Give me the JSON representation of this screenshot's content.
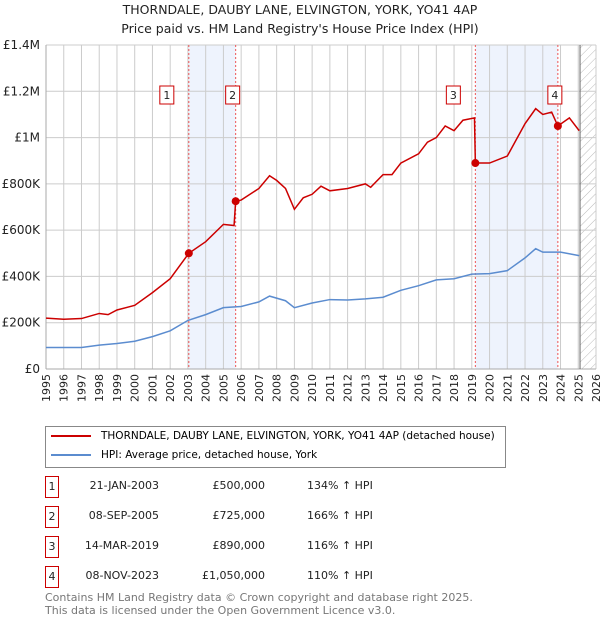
{
  "chart_data": {
    "type": "line",
    "title": "THORNDALE, DAUBY LANE, ELVINGTON, YORK, YO41 4AP",
    "subtitle": "Price paid vs. HM Land Registry's House Price Index (HPI)",
    "xlim": [
      1995,
      2026
    ],
    "ylim": [
      0,
      1400000
    ],
    "y_ticks": [
      {
        "v": 0,
        "label": "£0"
      },
      {
        "v": 200000,
        "label": "£200K"
      },
      {
        "v": 400000,
        "label": "£400K"
      },
      {
        "v": 600000,
        "label": "£600K"
      },
      {
        "v": 800000,
        "label": "£800K"
      },
      {
        "v": 1000000,
        "label": "£1M"
      },
      {
        "v": 1200000,
        "label": "£1.2M"
      },
      {
        "v": 1400000,
        "label": "£1.4M"
      }
    ],
    "x_ticks": [
      "1995",
      "1996",
      "1997",
      "1998",
      "1999",
      "2000",
      "2001",
      "2002",
      "2003",
      "2004",
      "2005",
      "2006",
      "2007",
      "2008",
      "2009",
      "2010",
      "2011",
      "2012",
      "2013",
      "2014",
      "2015",
      "2016",
      "2017",
      "2018",
      "2019",
      "2020",
      "2021",
      "2022",
      "2023",
      "2024",
      "2025",
      "2026"
    ],
    "grid": true,
    "series": [
      {
        "name": "THORNDALE, DAUBY LANE, ELVINGTON, YORK, YO41 4AP (detached house)",
        "color": "#cc0000",
        "x": [
          1995,
          1996,
          1997,
          1998,
          1998.5,
          1999,
          2000,
          2001,
          2002,
          2003.05,
          2004,
          2005,
          2005.6,
          2005.69,
          2006,
          2007,
          2007.6,
          2008,
          2008.5,
          2009,
          2009.5,
          2010,
          2010.5,
          2011,
          2012,
          2013,
          2013.3,
          2014,
          2014.5,
          2015,
          2016,
          2016.5,
          2017,
          2017.5,
          2018,
          2018.5,
          2019.15,
          2019.2,
          2020,
          2021,
          2021.5,
          2022,
          2022.6,
          2023,
          2023.5,
          2023.85,
          2024.5,
          2025.05
        ],
        "y": [
          220000,
          215000,
          218000,
          240000,
          235000,
          255000,
          275000,
          330000,
          390000,
          500000,
          550000,
          625000,
          620000,
          725000,
          730000,
          780000,
          835000,
          815000,
          780000,
          690000,
          740000,
          755000,
          790000,
          770000,
          780000,
          800000,
          785000,
          840000,
          840000,
          890000,
          930000,
          980000,
          1000000,
          1050000,
          1030000,
          1075000,
          1085000,
          890000,
          890000,
          920000,
          990000,
          1060000,
          1125000,
          1100000,
          1110000,
          1050000,
          1085000,
          1030000
        ]
      },
      {
        "name": "HPI: Average price, detached house, York",
        "color": "#5b8ccf",
        "x": [
          1995,
          1997,
          1998,
          1999,
          2000,
          2001,
          2002,
          2003,
          2004,
          2005,
          2006,
          2007,
          2007.6,
          2008.5,
          2009,
          2010,
          2011,
          2012,
          2013,
          2014,
          2015,
          2016,
          2017,
          2018,
          2019,
          2020,
          2021,
          2022,
          2022.6,
          2023,
          2024,
          2025.05
        ],
        "y": [
          93000,
          93000,
          103000,
          110000,
          120000,
          140000,
          165000,
          210000,
          235000,
          265000,
          270000,
          290000,
          315000,
          295000,
          265000,
          285000,
          300000,
          298000,
          303000,
          310000,
          340000,
          360000,
          385000,
          390000,
          410000,
          412000,
          425000,
          480000,
          520000,
          505000,
          505000,
          490000
        ]
      }
    ],
    "sales": [
      {
        "n": "1",
        "date": "21-JAN-2003",
        "price": "£500,000",
        "hpi": "134% ↑ HPI",
        "x": 2003.05,
        "y": 500000
      },
      {
        "n": "2",
        "date": "08-SEP-2005",
        "price": "£725,000",
        "hpi": "166% ↑ HPI",
        "x": 2005.69,
        "y": 725000
      },
      {
        "n": "3",
        "date": "14-MAR-2019",
        "price": "£890,000",
        "hpi": "116% ↑ HPI",
        "x": 2019.2,
        "y": 890000
      },
      {
        "n": "4",
        "date": "08-NOV-2023",
        "price": "£1,050,000",
        "hpi": "110% ↑ HPI",
        "x": 2023.85,
        "y": 1050000
      }
    ],
    "shaded": [
      [
        2003.05,
        2005.69
      ],
      [
        2019.2,
        2023.85
      ]
    ],
    "future_from": 2025.1
  },
  "footer": {
    "line1": "Contains HM Land Registry data © Crown copyright and database right 2025.",
    "line2": "This data is licensed under the Open Government Licence v3.0."
  }
}
